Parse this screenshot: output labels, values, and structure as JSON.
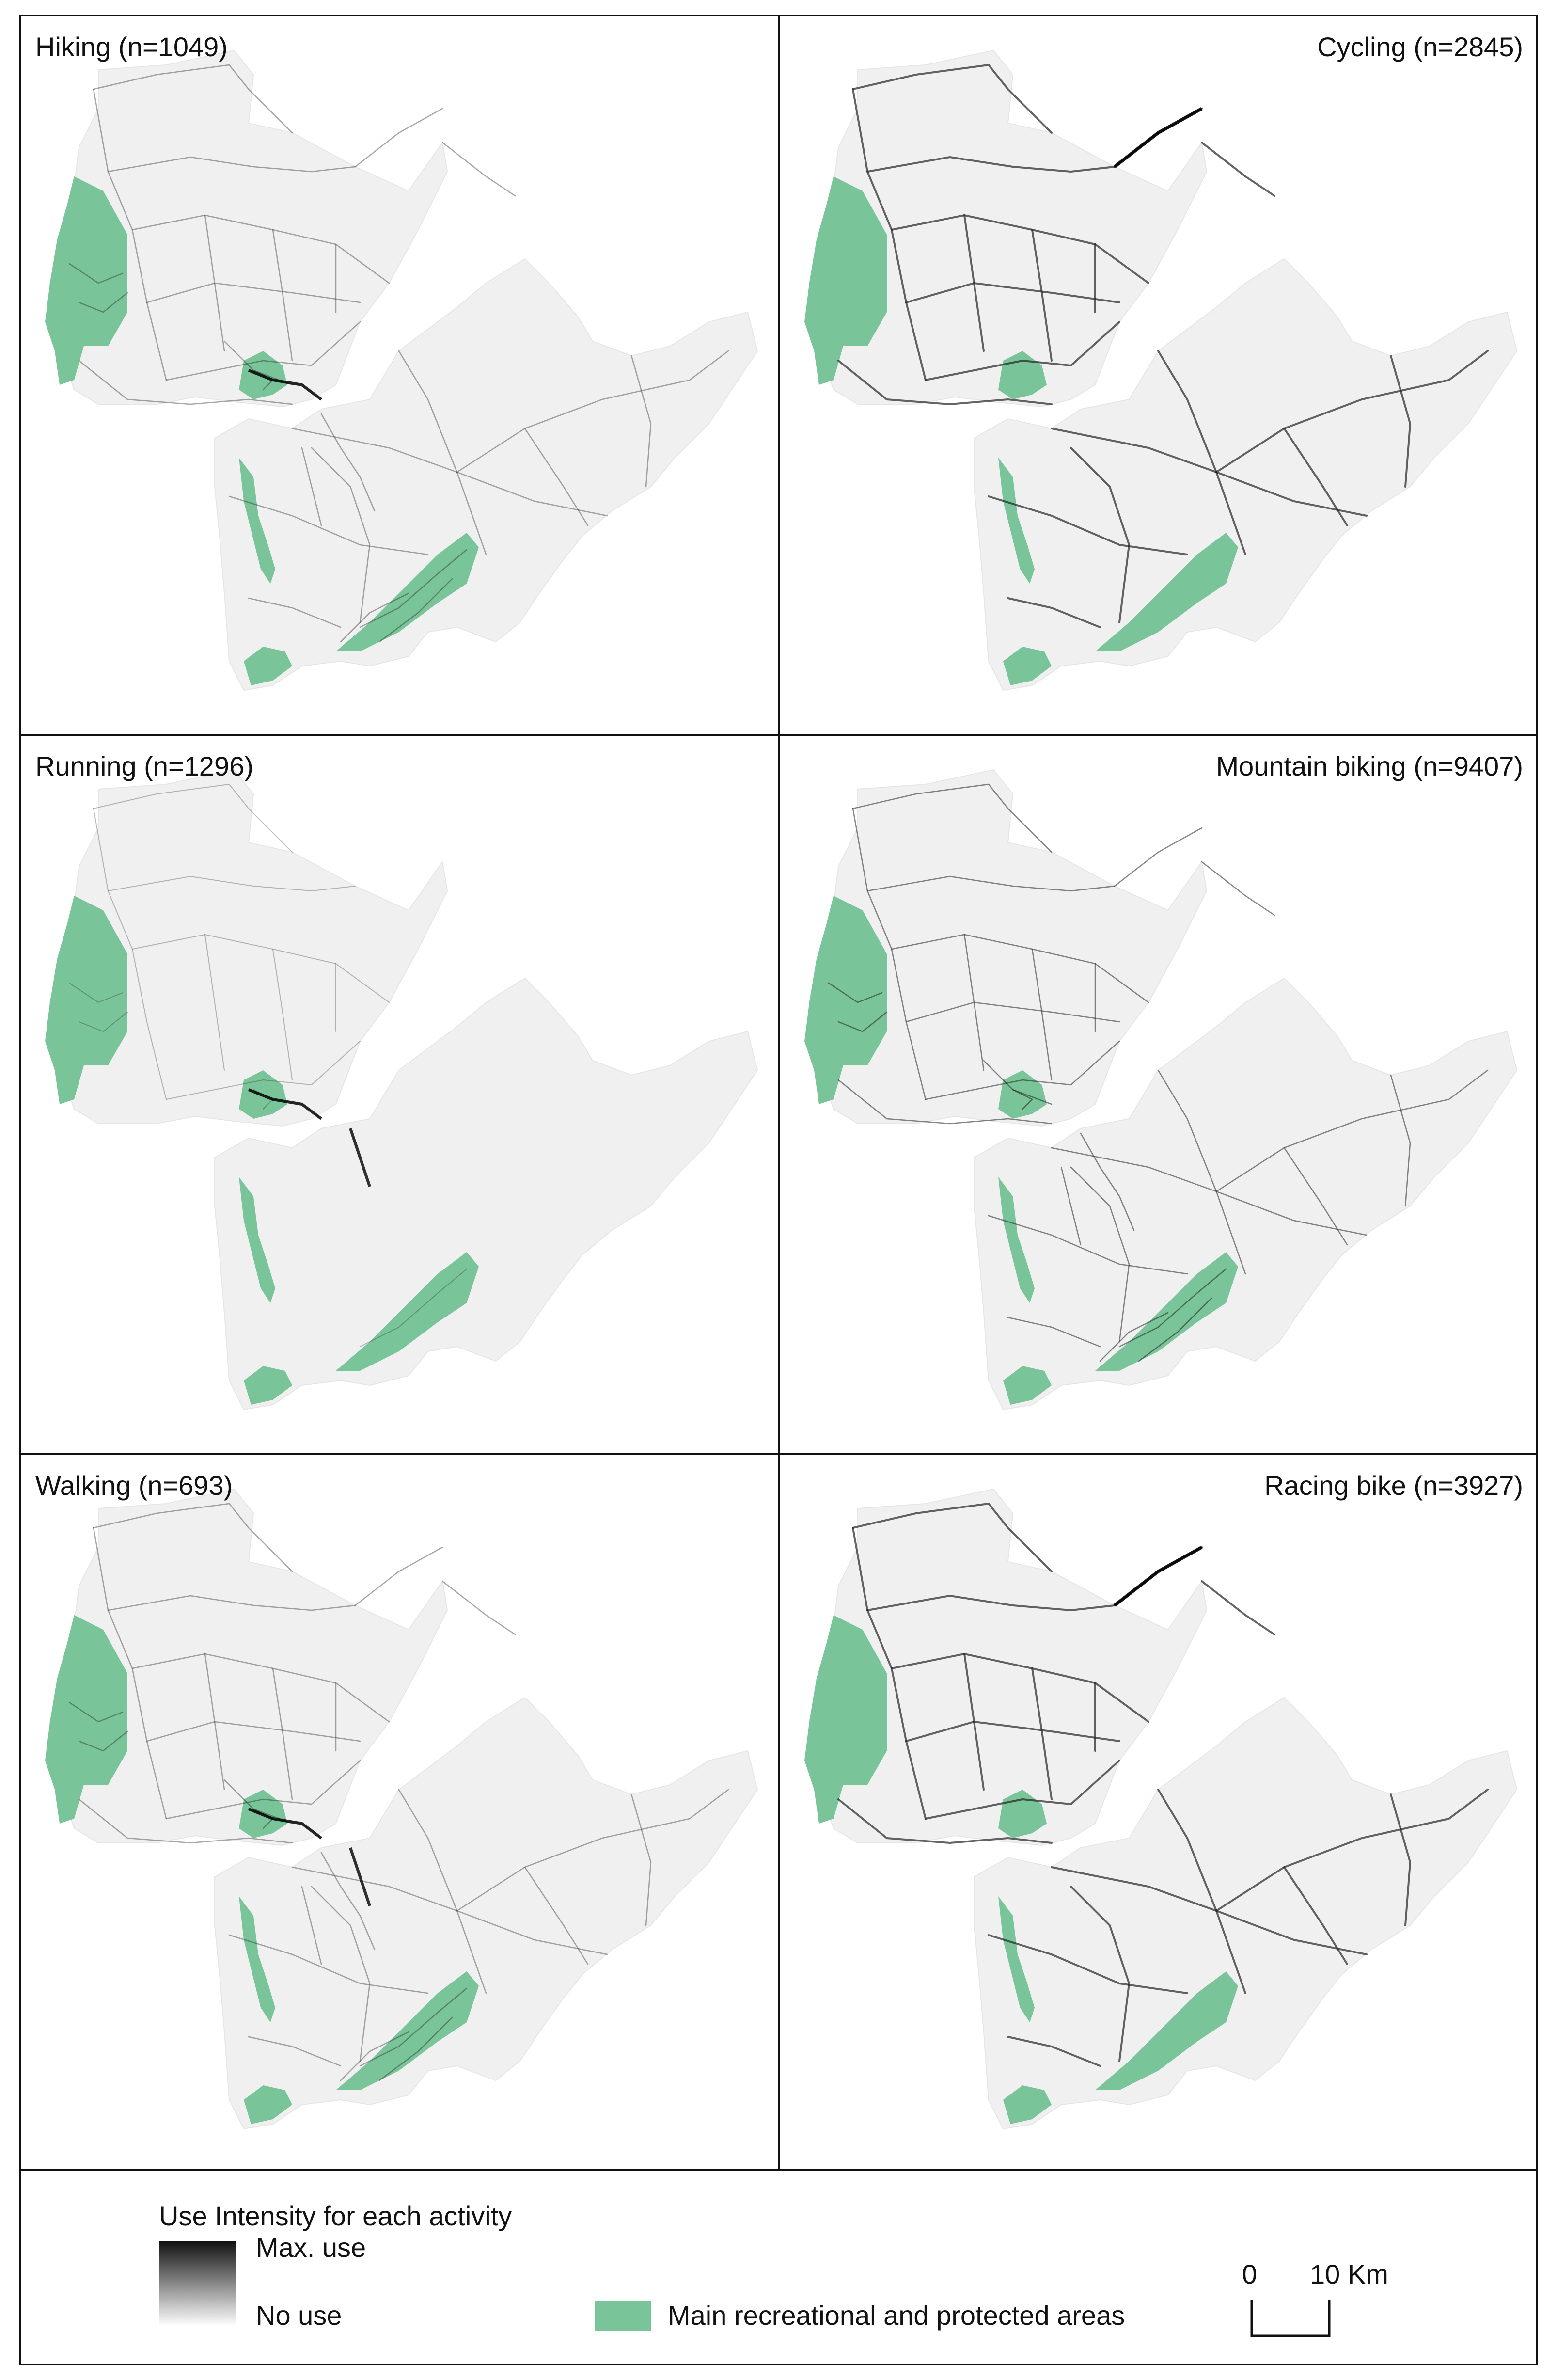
{
  "panels": [
    {
      "id": "hiking",
      "title": "Hiking (n=1049)",
      "title_align": "left",
      "pattern": "hiking"
    },
    {
      "id": "cycling",
      "title": "Cycling (n=2845)",
      "title_align": "right",
      "pattern": "roads"
    },
    {
      "id": "running",
      "title": "Running (n=1296)",
      "title_align": "left",
      "pattern": "running"
    },
    {
      "id": "mountain-biking",
      "title": "Mountain biking (n=9407)",
      "title_align": "right",
      "pattern": "dense"
    },
    {
      "id": "walking",
      "title": "Walking (n=693)",
      "title_align": "left",
      "pattern": "walking"
    },
    {
      "id": "racing-bike",
      "title": "Racing bike (n=3927)",
      "title_align": "right",
      "pattern": "roads"
    }
  ],
  "legend": {
    "title": "Use Intensity for each activity",
    "max_label": "Max. use",
    "min_label": "No use",
    "areas_label": "Main recreational and protected areas",
    "scale_zero": "0",
    "scale_ten": "10 Km"
  },
  "colors": {
    "land": "#f0f0f0",
    "protected_area": "#79c498",
    "protected_area_dark": "#3f8f60",
    "track": "#222222"
  }
}
